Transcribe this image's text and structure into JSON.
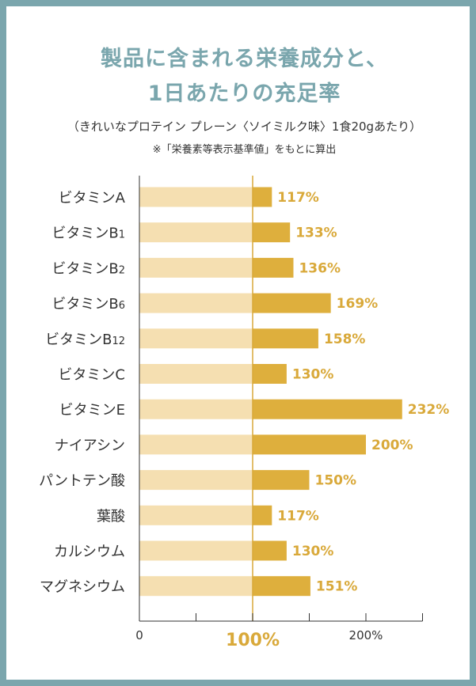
{
  "title_line1": "製品に含まれる栄養成分と、",
  "title_line2": "1日あたりの充足率",
  "subtitle": "（きれいなプロテイン プレーン〈ソイミルク味〉1食20gあたり）",
  "note": "※「栄養素等表示基準値」をもとに算出",
  "colors": {
    "frame": "#7ba6ad",
    "title": "#7aa6ad",
    "base_bar": "#f5dfb1",
    "excess_bar": "#deaf3d",
    "value_text": "#d9a93a",
    "axis": "#333333",
    "ref_line": "#d9a93a"
  },
  "chart_data": {
    "type": "bar",
    "orientation": "horizontal",
    "categories": [
      "ビタミンA",
      "ビタミンB1",
      "ビタミンB2",
      "ビタミンB6",
      "ビタミンB12",
      "ビタミンC",
      "ビタミンE",
      "ナイアシン",
      "パントテン酸",
      "葉酸",
      "カルシウム",
      "マグネシウム"
    ],
    "category_display": [
      {
        "main": "ビタミンA",
        "sub": ""
      },
      {
        "main": "ビタミンB",
        "sub": "1"
      },
      {
        "main": "ビタミンB",
        "sub": "2"
      },
      {
        "main": "ビタミンB",
        "sub": "6"
      },
      {
        "main": "ビタミンB",
        "sub": "12"
      },
      {
        "main": "ビタミンC",
        "sub": ""
      },
      {
        "main": "ビタミンE",
        "sub": ""
      },
      {
        "main": "ナイアシン",
        "sub": ""
      },
      {
        "main": "パントテン酸",
        "sub": ""
      },
      {
        "main": "葉酸",
        "sub": ""
      },
      {
        "main": "カルシウム",
        "sub": ""
      },
      {
        "main": "マグネシウム",
        "sub": ""
      }
    ],
    "values": [
      117,
      133,
      136,
      169,
      158,
      130,
      232,
      200,
      150,
      117,
      130,
      151
    ],
    "value_labels": [
      "117%",
      "133%",
      "136%",
      "169%",
      "158%",
      "130%",
      "232%",
      "200%",
      "150%",
      "117%",
      "130%",
      "151%"
    ],
    "unit": "%",
    "xlim": [
      0,
      250
    ],
    "xticks": [
      0,
      50,
      100,
      150,
      200,
      250
    ],
    "xtick_labels": [
      {
        "value": 0,
        "label": "0"
      },
      {
        "value": 100,
        "label": "100%"
      },
      {
        "value": 200,
        "label": "200%"
      }
    ],
    "reference_line": 100
  }
}
